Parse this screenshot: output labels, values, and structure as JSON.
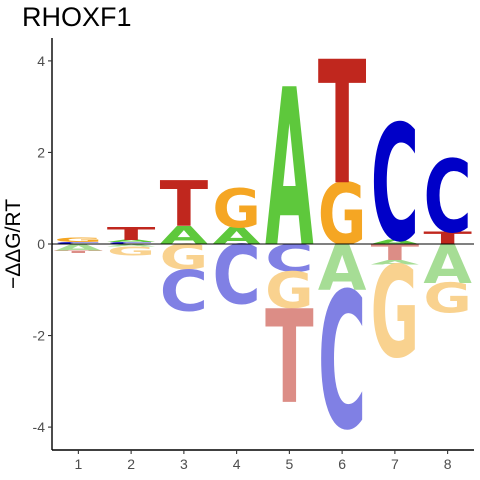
{
  "chart_data": {
    "type": "sequence-logo",
    "title": "RHOXF1",
    "xlabel": "",
    "ylabel": "−ΔΔG/RT",
    "x_ticks": [
      "1",
      "2",
      "3",
      "4",
      "5",
      "6",
      "7",
      "8"
    ],
    "y_ticks": [
      "-4",
      "-2",
      "0",
      "2",
      "4"
    ],
    "ylim": [
      -4.5,
      4.5
    ],
    "grid": false,
    "colors": {
      "A": "#5ec83c",
      "C": "#0000c8",
      "G": "#f5a623",
      "T": "#c0271e",
      "A_neg": "#a6dd95",
      "C_neg": "#8080e4",
      "G_neg": "#f9d28f",
      "T_neg": "#dc8d86"
    },
    "positions": [
      {
        "pos": 1,
        "positive": [
          [
            "C",
            0.04
          ],
          [
            "G",
            0.1
          ]
        ],
        "negative": [
          [
            "A",
            0.15
          ],
          [
            "T",
            0.05
          ]
        ]
      },
      {
        "pos": 2,
        "positive": [
          [
            "C",
            0.04
          ],
          [
            "A",
            0.05
          ],
          [
            "T",
            0.28
          ]
        ],
        "negative": [
          [
            "A",
            0.05
          ],
          [
            "G",
            0.2
          ]
        ]
      },
      {
        "pos": 3,
        "positive": [
          [
            "A",
            0.4
          ],
          [
            "T",
            1.0
          ]
        ],
        "negative": [
          [
            "G",
            0.55
          ],
          [
            "C",
            0.9
          ]
        ]
      },
      {
        "pos": 4,
        "positive": [
          [
            "A",
            0.37
          ],
          [
            "G",
            0.85
          ]
        ],
        "negative": [
          [
            "C",
            1.3
          ]
        ]
      },
      {
        "pos": 5,
        "positive": [
          [
            "A",
            3.45
          ]
        ],
        "negative": [
          [
            "C",
            0.6
          ],
          [
            "G",
            0.8
          ],
          [
            "T",
            2.05
          ]
        ]
      },
      {
        "pos": 6,
        "positive": [
          [
            "G",
            1.35
          ],
          [
            "T",
            2.7
          ]
        ],
        "negative": [
          [
            "A",
            1.0
          ],
          [
            "C",
            3.0
          ]
        ]
      },
      {
        "pos": 7,
        "positive": [
          [
            "A",
            0.1
          ],
          [
            "C",
            2.55
          ]
        ],
        "negative": [
          [
            "T",
            0.35
          ],
          [
            "A",
            0.1
          ],
          [
            "G",
            2.0
          ]
        ]
      },
      {
        "pos": 8,
        "positive": [
          [
            "T",
            0.27
          ],
          [
            "C",
            1.6
          ]
        ],
        "negative": [
          [
            "A",
            0.85
          ],
          [
            "G",
            0.65
          ]
        ]
      }
    ]
  }
}
